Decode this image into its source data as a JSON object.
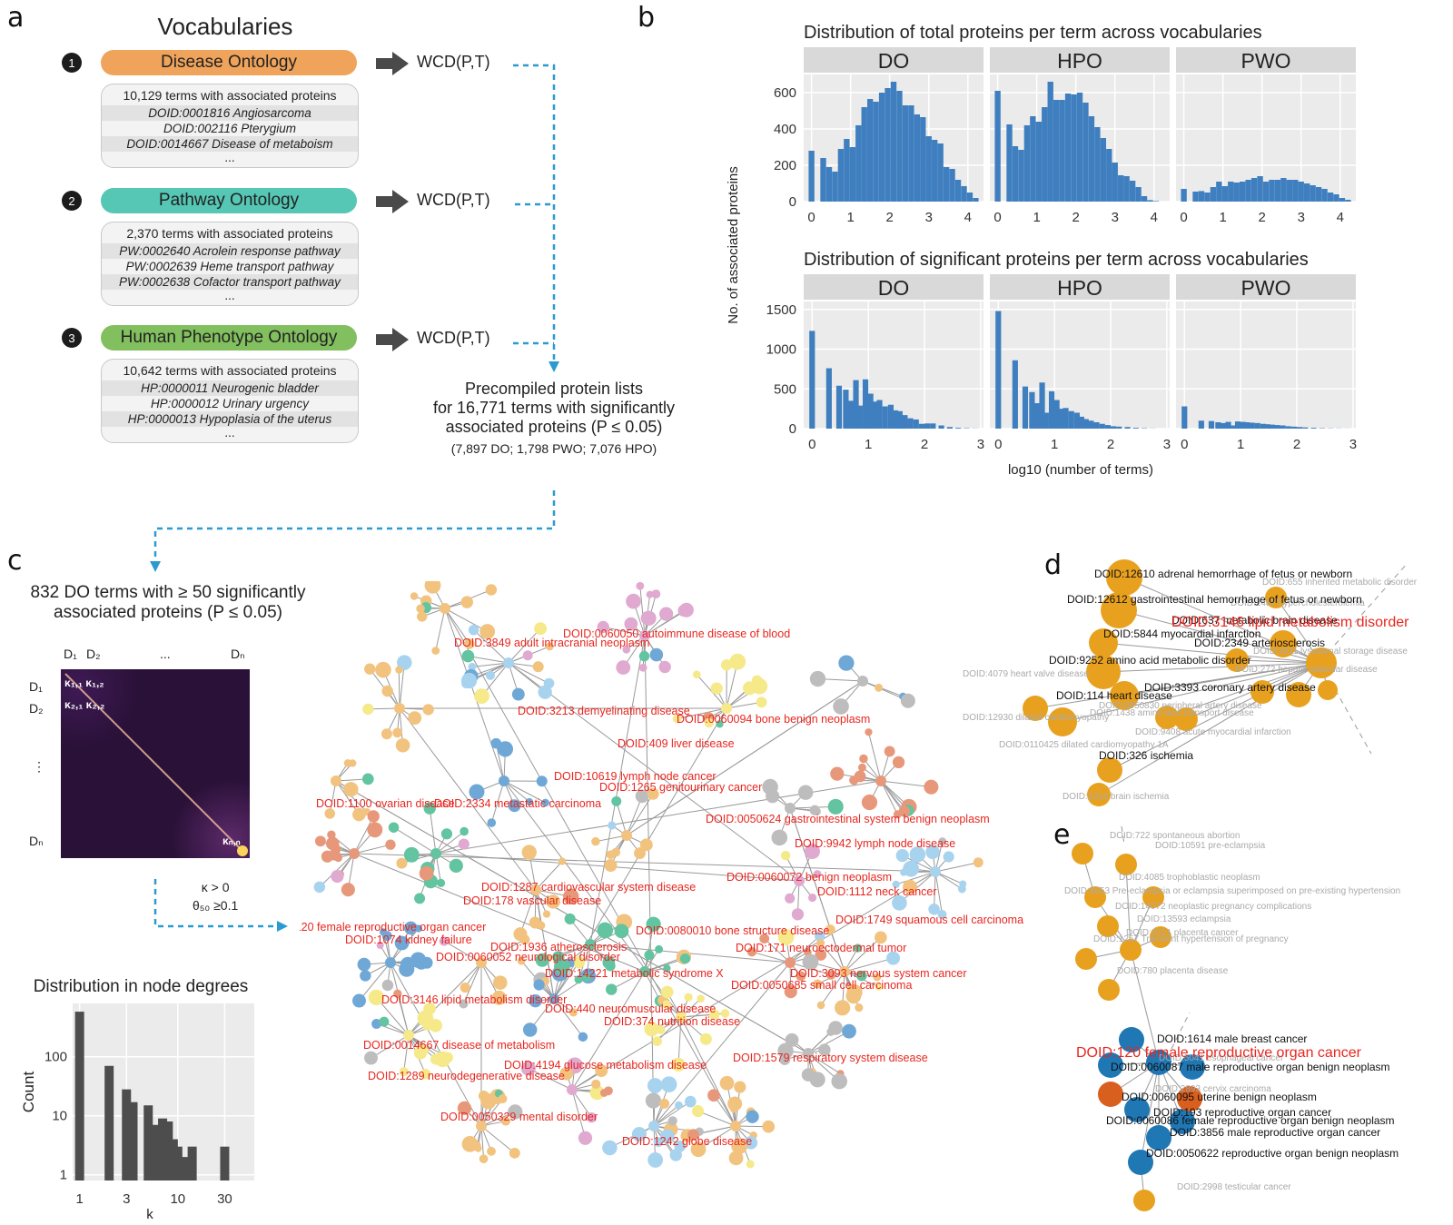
{
  "panel_letters": {
    "a": "a",
    "b": "b",
    "c": "c",
    "d": "d",
    "e": "e"
  },
  "panel_a": {
    "title": "Vocabularies",
    "vocabularies": [
      {
        "number": "1",
        "name": "Disease Ontology",
        "color": "#f0a35a",
        "count_text": "10,129 terms with associated proteins",
        "examples": [
          "DOID:0001816 Angiosarcoma",
          "DOID:002116 Pterygium",
          "DOID:0014667 Disease of metaboism"
        ],
        "ellipsis": "...",
        "output": "WCD(P,T)"
      },
      {
        "number": "2",
        "name": "Pathway Ontology",
        "color": "#55c7b4",
        "count_text": "2,370 terms with associated proteins",
        "examples": [
          "PW:0002640 Acrolein response pathway",
          "PW:0002639 Heme transport pathway",
          "PW:0002638 Cofactor transport pathway"
        ],
        "ellipsis": "...",
        "output": "WCD(P,T)"
      },
      {
        "number": "3",
        "name": "Human Phenotype Ontology",
        "color": "#82bf5e",
        "count_text": "10,642 terms with associated proteins",
        "examples": [
          "HP:0000011 Neurogenic bladder",
          "HP:0000012 Urinary urgency",
          "HP:0000013 Hypoplasia of the uterus"
        ],
        "ellipsis": "...",
        "output": "WCD(P,T)"
      }
    ],
    "precompiled": {
      "lines": [
        "Precompiled protein lists",
        "for 16,771 terms with significantly",
        "associated proteins (P ≤ 0.05)"
      ],
      "breakdown": "(7,897 DO; 1,798 PWO; 7,076 HPO)"
    },
    "flow_color": "#2b9ad0"
  },
  "panel_c": {
    "title_lines": [
      "832 DO terms with ≥ 50 significantly",
      "associated proteins (P ≤ 0.05)"
    ],
    "matrix_labels": {
      "col1": "D₁",
      "col2": "D₂",
      "col_dots": "...",
      "coln": "Dₙ",
      "row1": "D₁",
      "row2": "D₂",
      "row_dots": "⋮",
      "rown": "Dₙ",
      "k11": "κ₁,₁",
      "k12": "κ₁,₂",
      "k21": "κ₂,₁",
      "k22": "κ₂,₂",
      "knn": "κₙ,ₙ"
    },
    "threshold_lines": [
      "κ > 0",
      "θ₅₀ ≥0.1"
    ],
    "network_labels": [
      "DOID:0060050 autoimmune disease of blood",
      "DOID:3849 adult intracranial neoplasm",
      "DOID:3213 demyelinating disease",
      "DOID:0060094 bone benign neoplasm",
      "DOID:409 liver disease",
      "DOID:10619 lymph node cancer",
      "DOID:1265 genitourinary cancer",
      "DOID:1100 ovarian disease",
      "DOID:2334 metastatic carcinoma",
      "DOID:0050624 gastrointestinal system benign neoplasm",
      "DOID:9942 lymph node disease",
      "DOID:1287 cardiovascular system disease",
      "DOID:178 vascular disease",
      "DOID:0060072 benign neoplasm",
      "DOID:1112 neck cancer",
      "DOID:120 female reproductive organ cancer",
      "DOID:1074 kidney failure",
      "DOID:0080010 bone structure disease",
      "DOID:1749 squamous cell carcinoma",
      "DOID:1936 atherosclerosis",
      "DOID:0060052 neurological disorder",
      "DOID:171 neuroectodermal tumor",
      "DOID:14221 metabolic syndrome X",
      "DOID:3093 nervous system cancer",
      "DOID:0050685 small cell carcinoma",
      "DOID:3146 lipid metabolism disorder",
      "DOID:440 neuromuscular disease",
      "DOID:374 nutrition disease",
      "DOID:0014667 disease of metabolism",
      "DOID:4194 glucose metabolism disease",
      "DOID:1579 respiratory system disease",
      "DOID:1289 neurodegenerative disease",
      "DOID:0050329 mental disorder",
      "DOID:1242 globe disease"
    ],
    "node_colors": [
      "#f2c37e",
      "#f2c37e",
      "#f2c37e",
      "#6fa8d6",
      "#f6e98a",
      "#62c4a0",
      "#e8987a",
      "#bdbdbd",
      "#e0a9d0",
      "#a8d3ef"
    ],
    "label_color": "#e8261f"
  },
  "chart_data": [
    {
      "type": "bar",
      "title": "Distribution of total proteins per term across vocabularies",
      "xlabel": "log10 (number of terms)",
      "ylabel": "No. of associated proteins",
      "facets": [
        "DO",
        "HPO",
        "PWO"
      ],
      "xlim": [
        -0.2,
        4.4
      ],
      "ylim": [
        0,
        700
      ],
      "xticks": [
        "0",
        "1",
        "2",
        "3",
        "4"
      ],
      "yticks": [
        "0",
        "200",
        "400",
        "600"
      ],
      "bin_width": 0.148,
      "series": [
        {
          "name": "DO",
          "x": [
            0,
            0.3,
            0.45,
            0.6,
            0.75,
            0.9,
            1.05,
            1.2,
            1.35,
            1.5,
            1.65,
            1.8,
            1.95,
            2.1,
            2.25,
            2.4,
            2.55,
            2.7,
            2.85,
            3.0,
            3.15,
            3.3,
            3.45,
            3.6,
            3.75,
            3.9,
            4.05,
            4.2
          ],
          "values": [
            280,
            240,
            190,
            165,
            290,
            345,
            300,
            420,
            520,
            565,
            550,
            600,
            625,
            660,
            610,
            530,
            530,
            480,
            465,
            360,
            340,
            320,
            190,
            180,
            120,
            85,
            50,
            20
          ]
        },
        {
          "name": "HPO",
          "x": [
            0,
            0.3,
            0.45,
            0.6,
            0.75,
            0.9,
            1.05,
            1.2,
            1.35,
            1.5,
            1.65,
            1.8,
            1.95,
            2.1,
            2.25,
            2.4,
            2.55,
            2.7,
            2.85,
            3.0,
            3.15,
            3.3,
            3.45,
            3.6,
            3.75,
            3.9,
            4.05,
            4.2
          ],
          "values": [
            610,
            425,
            305,
            285,
            420,
            470,
            440,
            520,
            660,
            560,
            560,
            595,
            590,
            600,
            545,
            470,
            410,
            350,
            290,
            215,
            145,
            140,
            115,
            80,
            30,
            8,
            3,
            0
          ]
        },
        {
          "name": "PWO",
          "x": [
            0,
            0.3,
            0.45,
            0.6,
            0.75,
            0.9,
            1.05,
            1.2,
            1.35,
            1.5,
            1.65,
            1.8,
            1.95,
            2.1,
            2.25,
            2.4,
            2.55,
            2.7,
            2.85,
            3.0,
            3.15,
            3.3,
            3.45,
            3.6,
            3.75,
            3.9,
            4.05,
            4.2
          ],
          "values": [
            70,
            55,
            58,
            50,
            80,
            110,
            85,
            110,
            105,
            110,
            120,
            130,
            140,
            110,
            120,
            120,
            130,
            120,
            120,
            110,
            100,
            90,
            80,
            70,
            50,
            40,
            20,
            10
          ]
        }
      ]
    },
    {
      "type": "bar",
      "title": "Distribution of significant proteins per term across vocabularies",
      "xlabel": "log10 (number of terms)",
      "ylabel": "No. of associated proteins",
      "facets": [
        "DO",
        "HPO",
        "PWO"
      ],
      "xlim": [
        -0.15,
        3.05
      ],
      "ylim": [
        0,
        1600
      ],
      "xticks": [
        "0",
        "1",
        "2",
        "3"
      ],
      "yticks": [
        "0",
        "500",
        "1000",
        "1500"
      ],
      "bin_width": 0.1,
      "series": [
        {
          "name": "DO",
          "x": [
            0,
            0.3,
            0.48,
            0.6,
            0.7,
            0.78,
            0.85,
            0.95,
            1.04,
            1.11,
            1.2,
            1.3,
            1.4,
            1.48,
            1.56,
            1.65,
            1.75,
            1.85,
            1.95,
            2.05,
            2.15,
            2.3,
            2.45,
            2.6,
            2.75,
            2.9
          ],
          "values": [
            1230,
            760,
            540,
            490,
            350,
            610,
            290,
            620,
            440,
            340,
            360,
            280,
            300,
            230,
            220,
            170,
            130,
            115,
            60,
            65,
            65,
            40,
            20,
            10,
            5,
            2
          ]
        },
        {
          "name": "HPO",
          "x": [
            0,
            0.3,
            0.48,
            0.6,
            0.7,
            0.78,
            0.85,
            0.95,
            1.04,
            1.11,
            1.2,
            1.3,
            1.4,
            1.48,
            1.56,
            1.65,
            1.75,
            1.85,
            1.95,
            2.05,
            2.15,
            2.3,
            2.45,
            2.6,
            2.75,
            2.9
          ],
          "values": [
            1480,
            860,
            530,
            460,
            320,
            580,
            200,
            470,
            360,
            250,
            260,
            220,
            200,
            150,
            120,
            100,
            80,
            60,
            45,
            30,
            25,
            20,
            10,
            5,
            2,
            0
          ]
        },
        {
          "name": "PWO",
          "x": [
            0,
            0.3,
            0.48,
            0.6,
            0.7,
            0.78,
            0.85,
            0.95,
            1.04,
            1.11,
            1.2,
            1.3,
            1.4,
            1.48,
            1.56,
            1.65,
            1.75,
            1.85,
            1.95,
            2.05,
            2.15,
            2.3,
            2.45,
            2.6,
            2.75,
            2.9
          ],
          "values": [
            280,
            100,
            95,
            80,
            70,
            85,
            40,
            90,
            85,
            80,
            75,
            70,
            60,
            55,
            50,
            45,
            40,
            30,
            25,
            20,
            15,
            10,
            5,
            3,
            2,
            1
          ]
        }
      ]
    },
    {
      "type": "bar",
      "title": "Distribution in node degrees",
      "xlabel": "k",
      "ylabel": "Count",
      "xscale": "log",
      "yscale": "log",
      "xticks": [
        "1",
        "3",
        "10",
        "30"
      ],
      "yticks": [
        "1",
        "10",
        "100"
      ],
      "categories": [
        1,
        2,
        3,
        3.5,
        5,
        6,
        7,
        8,
        9,
        10,
        12,
        14,
        30
      ],
      "values": [
        580,
        70,
        28,
        17,
        15,
        7,
        9,
        8,
        4,
        3,
        2,
        3,
        3
      ]
    }
  ],
  "panel_d": {
    "focus_label": "DOID:3146 lipid metabolism disorder",
    "primary_labels": [
      "DOID:12610 adrenal hemorrhage of fetus or newborn",
      "DOID:12612 gastrointestinal hemorrhage of fetus or newborn",
      "DOID:637 metabolic brain disease",
      "DOID:5844 myocardial infarction",
      "DOID:2349 arteriosclerosis",
      "DOID:9252 amino acid metabolic disorder",
      "DOID:3393 coronary artery disease",
      "DOID:114 heart disease",
      "DOID:326 ischemia"
    ],
    "secondary_labels": [
      "DOID:655 inherited metabolic disorder",
      "DOID:2487 hypercholesterolemia",
      "DOID:3211 lysosomal storage disease",
      "DOID:272 hepatic vascular disease",
      "DOID:4079 heart valve disease",
      "DOID:0050830 peripheral artery disease",
      "DOID:12930 dilated cardiomyopathy",
      "DOID:1438 amino acid transport disease",
      "DOID:9408 acute myocardial infarction",
      "DOID:0110425 dilated cardiomyopathy 1A",
      "DOID:2316 brain ischemia"
    ],
    "node_color": "#e8a11f"
  },
  "panel_e": {
    "focus_label": "DOID:120 female reproductive organ cancer",
    "primary_labels": [
      "DOID:1614 male breast cancer",
      "DOID:0060087 male reproductive organ benign neoplasm",
      "DOID:0060095 uterine benign neoplasm",
      "DOID:193 reproductive organ cancer",
      "DOID:0060086 female reproductive organ benign neoplasm",
      "DOID:3856 male reproductive organ cancer",
      "DOID:0050622 reproductive organ benign neoplasm"
    ],
    "secondary_labels": [
      "DOID:722 spontaneous abortion",
      "DOID:10591 pre-eclampsia",
      "DOID:4085 trophoblastic neoplasm",
      "DOID:9653 Pre-eclampsia or eclampsia superimposed on pre-existing hypertension",
      "DOID:14072 neoplastic pregnancy complications",
      "DOID:13593 eclampsia",
      "DOID:2021 placenta cancer",
      "DOID:1257 Transient hypertension of pregnancy",
      "DOID:780 placenta disease",
      "DOID:5041 esophageal cancer",
      "DOID:2893 cervix carcinoma",
      "DOID:2998 testicular cancer"
    ],
    "colors": {
      "orange": "#e8a11f",
      "blue": "#1f77b4",
      "red": "#d95f1e"
    }
  }
}
